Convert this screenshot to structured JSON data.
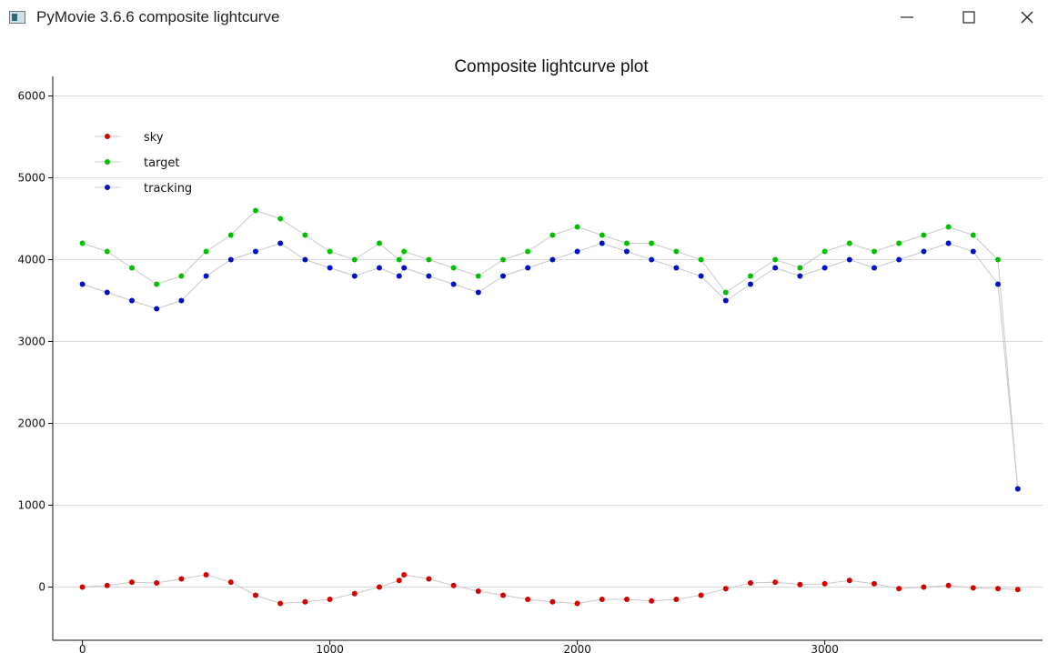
{
  "window": {
    "title": "PyMovie 3.6.6 composite lightcurve",
    "minimize_icon": "minimize-icon",
    "maximize_icon": "maximize-icon",
    "close_icon": "close-icon"
  },
  "chart_data": {
    "type": "scatter",
    "title": "Composite lightcurve plot",
    "xlabel": "",
    "ylabel": "",
    "xlim": [
      -120,
      3880
    ],
    "ylim": [
      -650,
      6150
    ],
    "x_ticks": [
      0,
      1000,
      2000,
      3000
    ],
    "y_ticks": [
      0,
      1000,
      2000,
      3000,
      4000,
      5000,
      6000
    ],
    "grid": true,
    "legend_position": "top-left",
    "connecting_line_color": "#c8c8c8",
    "series": [
      {
        "name": "sky",
        "color": "#d40000",
        "x": [
          0,
          100,
          200,
          300,
          400,
          500,
          600,
          700,
          800,
          900,
          1000,
          1100,
          1200,
          1280,
          1300,
          1400,
          1500,
          1600,
          1700,
          1800,
          1900,
          2000,
          2100,
          2200,
          2300,
          2400,
          2500,
          2600,
          2700,
          2800,
          2900,
          3000,
          3100,
          3200,
          3300,
          3400,
          3500,
          3600,
          3700,
          3780
        ],
        "values": [
          0,
          20,
          60,
          50,
          100,
          150,
          60,
          -100,
          -200,
          -180,
          -150,
          -80,
          0,
          80,
          150,
          100,
          20,
          -50,
          -100,
          -150,
          -180,
          -200,
          -150,
          -150,
          -170,
          -150,
          -100,
          -20,
          50,
          60,
          30,
          40,
          80,
          40,
          -20,
          0,
          20,
          -10,
          -20,
          -30
        ]
      },
      {
        "name": "target",
        "color": "#00c000",
        "x": [
          0,
          100,
          200,
          300,
          400,
          500,
          600,
          700,
          800,
          900,
          1000,
          1100,
          1200,
          1280,
          1300,
          1400,
          1500,
          1600,
          1700,
          1800,
          1900,
          2000,
          2100,
          2200,
          2300,
          2400,
          2500,
          2600,
          2700,
          2800,
          2900,
          3000,
          3100,
          3200,
          3300,
          3400,
          3500,
          3600,
          3700,
          3780
        ],
        "values": [
          4200,
          4100,
          3900,
          3700,
          3800,
          4100,
          4300,
          4600,
          4500,
          4300,
          4100,
          4000,
          4200,
          4000,
          4100,
          4000,
          3900,
          3800,
          4000,
          4100,
          4300,
          4400,
          4300,
          4200,
          4200,
          4100,
          4000,
          3600,
          3800,
          4000,
          3900,
          4100,
          4200,
          4100,
          4200,
          4300,
          4400,
          4300,
          4000,
          1200
        ]
      },
      {
        "name": "tracking",
        "color": "#0010c8",
        "x": [
          0,
          100,
          200,
          300,
          400,
          500,
          600,
          700,
          800,
          900,
          1000,
          1100,
          1200,
          1280,
          1300,
          1400,
          1500,
          1600,
          1700,
          1800,
          1900,
          2000,
          2100,
          2200,
          2300,
          2400,
          2500,
          2600,
          2700,
          2800,
          2900,
          3000,
          3100,
          3200,
          3300,
          3400,
          3500,
          3600,
          3700,
          3780
        ],
        "values": [
          3700,
          3600,
          3500,
          3400,
          3500,
          3800,
          4000,
          4100,
          4200,
          4000,
          3900,
          3800,
          3900,
          3800,
          3900,
          3800,
          3700,
          3600,
          3800,
          3900,
          4000,
          4100,
          4200,
          4100,
          4000,
          3900,
          3800,
          3500,
          3700,
          3900,
          3800,
          3900,
          4000,
          3900,
          4000,
          4100,
          4200,
          4100,
          3700,
          1200
        ]
      }
    ]
  }
}
